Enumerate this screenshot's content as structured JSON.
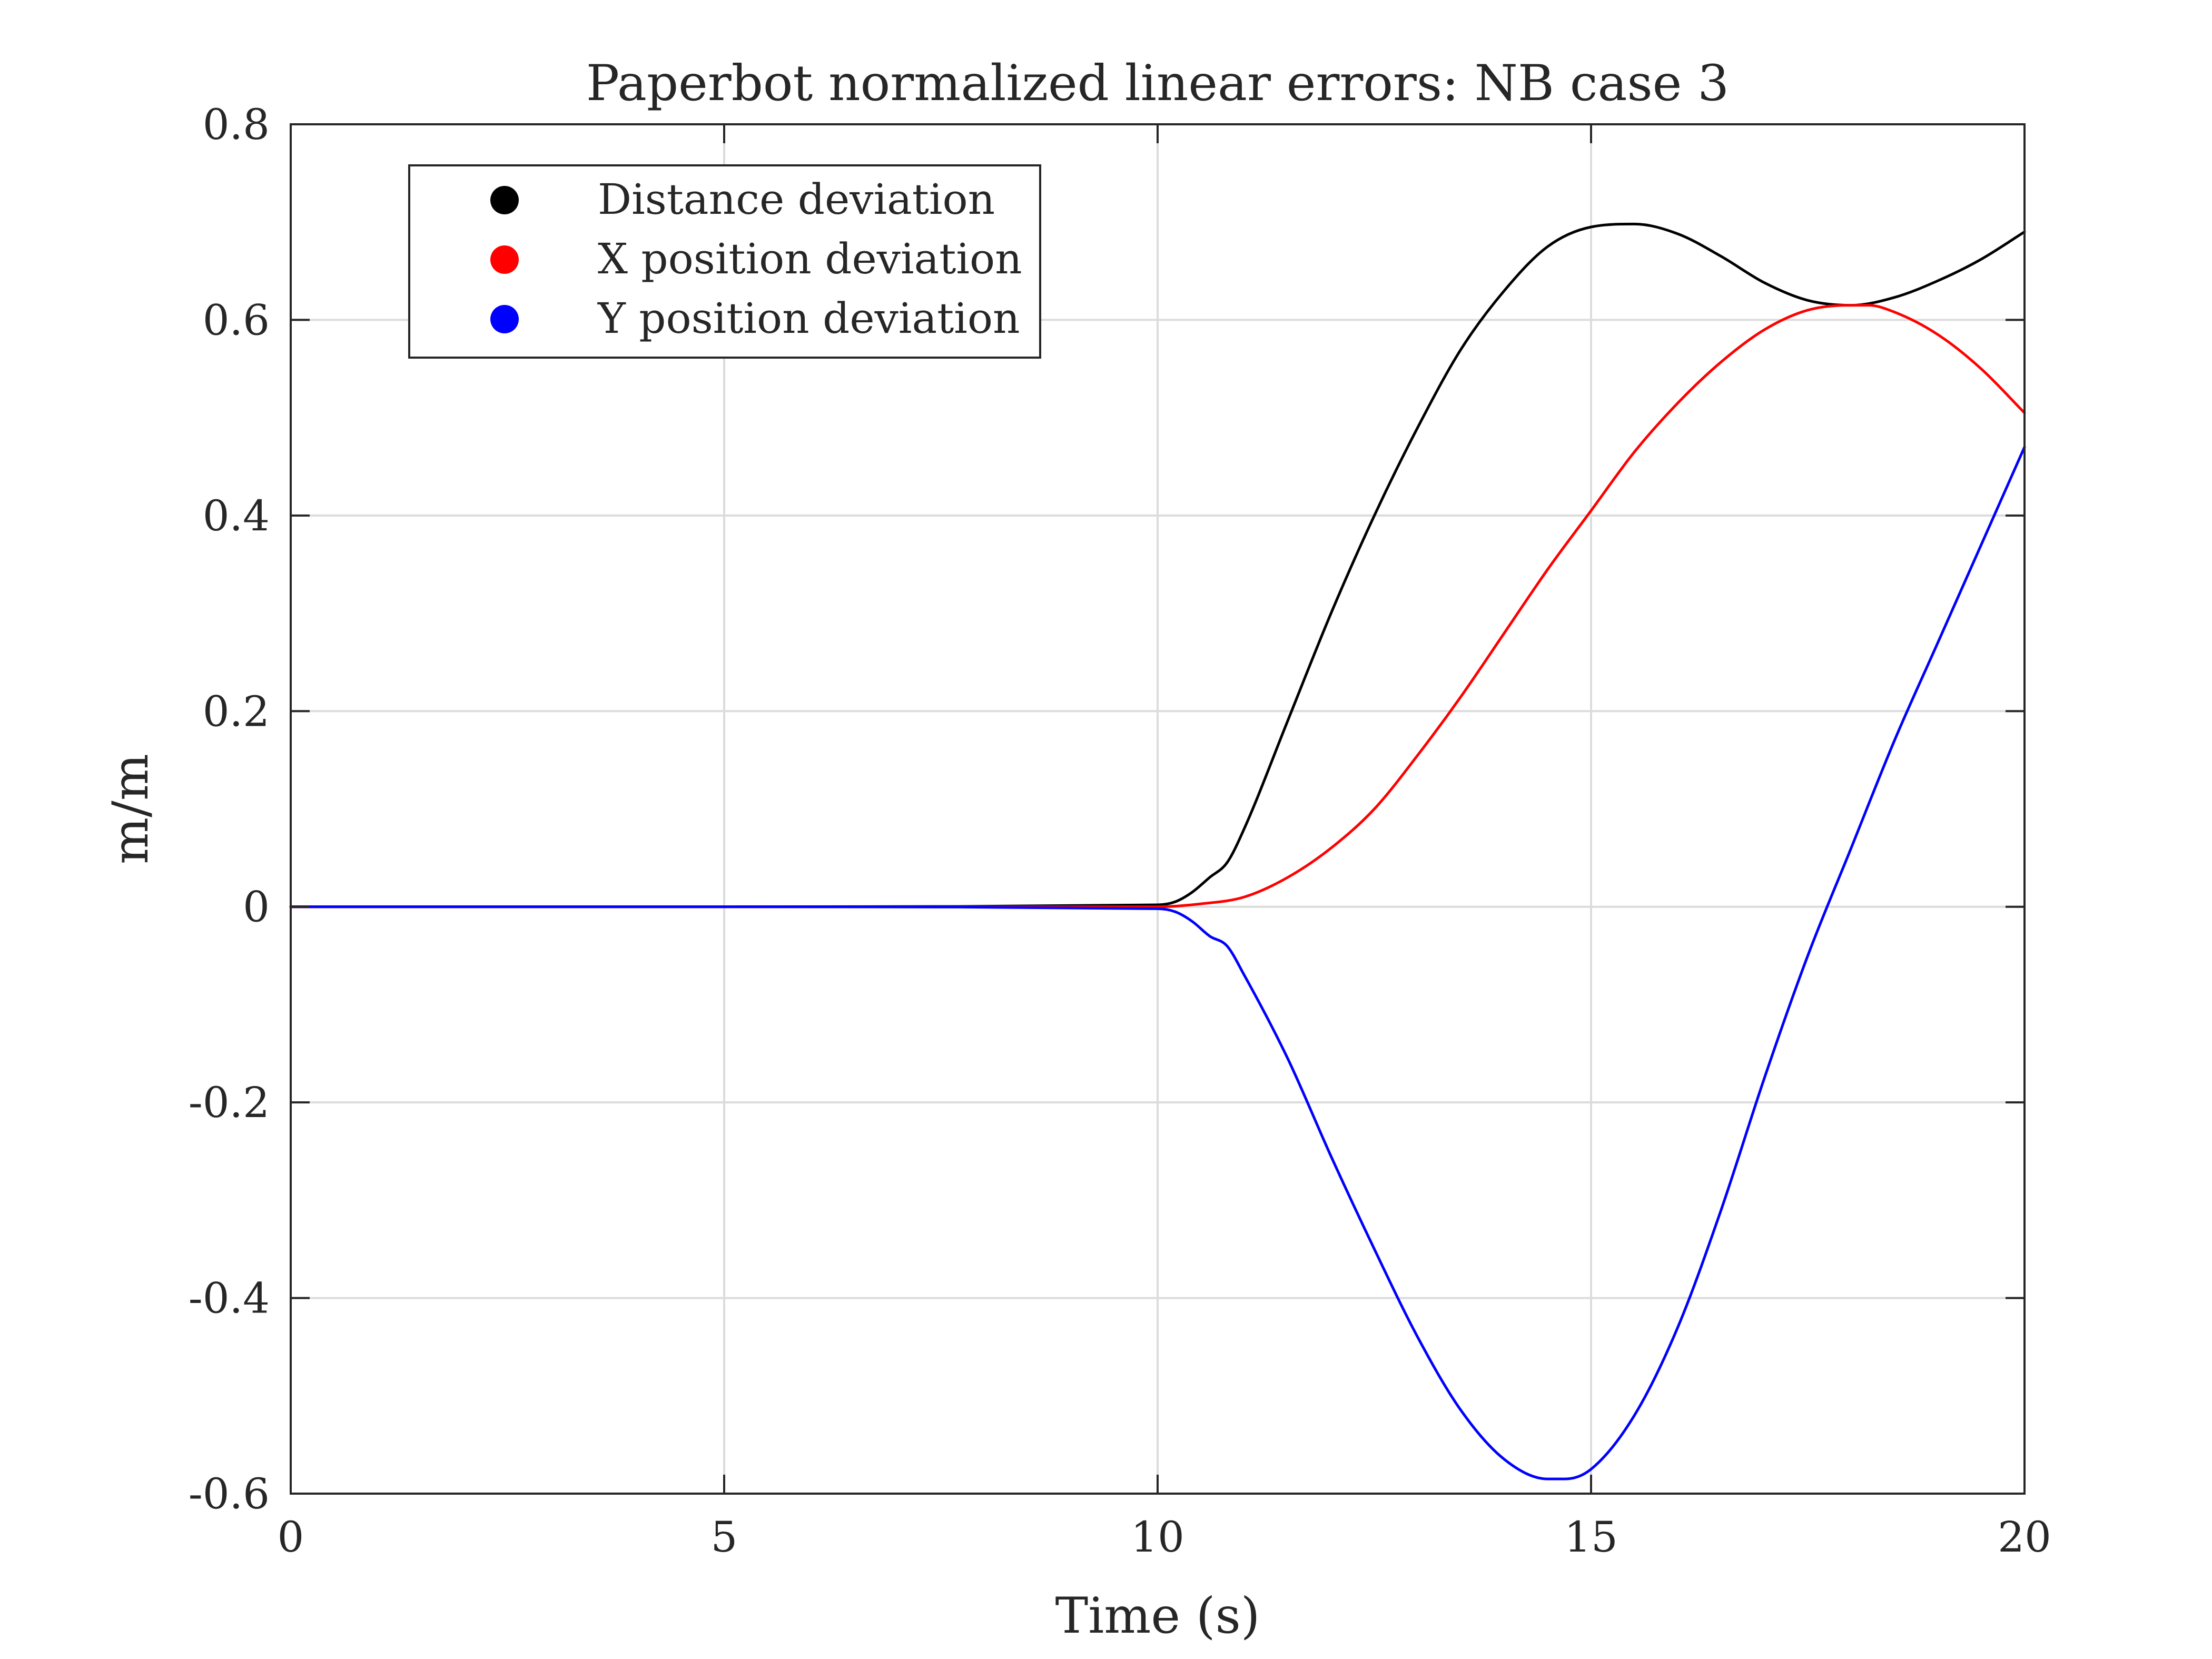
{
  "chart_data": {
    "type": "line",
    "title": "Paperbot normalized linear errors: NB case 3",
    "xlabel": "Time (s)",
    "ylabel": "m/m",
    "xlim": [
      0,
      20
    ],
    "ylim": [
      -0.6,
      0.8
    ],
    "xticks": [
      0,
      5,
      10,
      15,
      20
    ],
    "xtick_labels": [
      "0",
      "5",
      "10",
      "15",
      "20"
    ],
    "yticks": [
      -0.6,
      -0.4,
      -0.2,
      0,
      0.2,
      0.4,
      0.6,
      0.8
    ],
    "ytick_labels": [
      "-0.6",
      "-0.4",
      "-0.2",
      "0",
      "0.2",
      "0.4",
      "0.6",
      "0.8"
    ],
    "grid": true,
    "legend_position": "top-left",
    "series": [
      {
        "name": "Distance deviation",
        "color": "#000000",
        "x": [
          0,
          5,
          10,
          10.2,
          10.4,
          10.6,
          10.8,
          11.0,
          11.5,
          12.0,
          12.5,
          13.0,
          13.5,
          14.0,
          14.5,
          15.0,
          15.5,
          16.0,
          16.5,
          17.0,
          17.5,
          18.0,
          18.5,
          19.0,
          19.5,
          20.0
        ],
        "y": [
          0,
          0,
          0.002,
          0.005,
          0.015,
          0.03,
          0.045,
          0.08,
          0.19,
          0.3,
          0.4,
          0.49,
          0.57,
          0.63,
          0.675,
          0.695,
          0.698,
          0.688,
          0.665,
          0.638,
          0.62,
          0.615,
          0.623,
          0.64,
          0.662,
          0.69
        ]
      },
      {
        "name": "X position deviation",
        "color": "#ff0000",
        "x": [
          0,
          5,
          10,
          10.5,
          11.0,
          11.5,
          12.0,
          12.5,
          13.0,
          13.5,
          14.0,
          14.5,
          15.0,
          15.5,
          16.0,
          16.5,
          17.0,
          17.5,
          18.0,
          18.2,
          18.5,
          19.0,
          19.5,
          20.0
        ],
        "y": [
          0,
          0,
          0,
          0.003,
          0.01,
          0.03,
          0.06,
          0.1,
          0.155,
          0.215,
          0.28,
          0.345,
          0.405,
          0.465,
          0.515,
          0.557,
          0.59,
          0.61,
          0.615,
          0.615,
          0.608,
          0.585,
          0.55,
          0.505
        ]
      },
      {
        "name": "Y position deviation",
        "color": "#0000ff",
        "x": [
          0,
          5,
          10,
          10.2,
          10.4,
          10.6,
          10.8,
          11.0,
          11.5,
          12.0,
          12.5,
          13.0,
          13.5,
          14.0,
          14.5,
          14.7,
          15.0,
          15.5,
          16.0,
          16.5,
          17.0,
          17.5,
          18.0,
          18.5,
          19.0,
          19.5,
          20.0
        ],
        "y": [
          0,
          0,
          -0.002,
          -0.005,
          -0.015,
          -0.03,
          -0.04,
          -0.07,
          -0.155,
          -0.255,
          -0.35,
          -0.44,
          -0.515,
          -0.565,
          -0.585,
          -0.585,
          -0.575,
          -0.52,
          -0.43,
          -0.31,
          -0.175,
          -0.05,
          0.06,
          0.17,
          0.27,
          0.37,
          0.47
        ]
      }
    ]
  }
}
